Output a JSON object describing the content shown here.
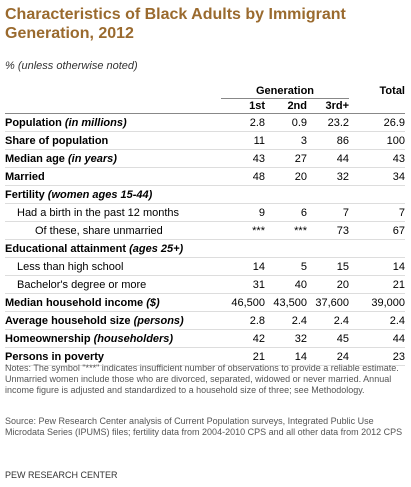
{
  "title": "Characteristics of Black Adults by Immigrant Generation, 2012",
  "subtitle": "% (unless otherwise noted)",
  "table": {
    "group_header": "Generation",
    "columns": [
      "1st",
      "2nd",
      "3rd+",
      "Total"
    ],
    "rows": [
      {
        "label": "Population",
        "qualifier": "(in millions)",
        "values": [
          "2.8",
          "0.9",
          "23.2",
          "26.9"
        ]
      },
      {
        "label": "Share of population",
        "values": [
          "11",
          "3",
          "86",
          "100"
        ]
      },
      {
        "label": "Median age",
        "qualifier": "(in years)",
        "values": [
          "43",
          "27",
          "44",
          "43"
        ]
      },
      {
        "label": "Married",
        "values": [
          "48",
          "20",
          "32",
          "34"
        ]
      },
      {
        "label": "Fertility",
        "qualifier": "(women ages 15-44)",
        "rows": [
          {
            "label": "Had a birth in the past 12 months",
            "values": [
              "9",
              "6",
              "7",
              "7"
            ],
            "rows": [
              {
                "label": "Of these, share unmarried",
                "values": [
                  "***",
                  "***",
                  "73",
                  "67"
                ]
              }
            ]
          }
        ]
      },
      {
        "label": "Educational attainment",
        "qualifier": "(ages 25+)",
        "rows": [
          {
            "label": "Less than high school",
            "values": [
              "14",
              "5",
              "15",
              "14"
            ]
          },
          {
            "label": "Bachelor's degree or more",
            "values": [
              "31",
              "40",
              "20",
              "21"
            ]
          }
        ]
      },
      {
        "label": "Median household income",
        "qualifier": "($)",
        "values": [
          "46,500",
          "43,500",
          "37,600",
          "39,000"
        ]
      },
      {
        "label": "Average household size",
        "qualifier": "(persons)",
        "values": [
          "2.8",
          "2.4",
          "2.4",
          "2.4"
        ]
      },
      {
        "label": "Homeownership",
        "qualifier": "(householders)",
        "values": [
          "42",
          "32",
          "45",
          "44"
        ]
      },
      {
        "label": "Persons in poverty",
        "values": [
          "21",
          "14",
          "24",
          "23"
        ]
      }
    ]
  },
  "notes": "Notes: The symbol \"***\" indicates insufficient number of observations to provide a reliable estimate. Unmarried women include those who are divorced, separated, widowed or never married. Annual income figure is adjusted and standardized to a household size of three; see Methodology.",
  "source": "Source: Pew Research Center analysis of Current Population surveys, Integrated Public Use Microdata Series (IPUMS) files; fertility data from 2004-2010 CPS and all other data from 2012 CPS",
  "footer": "PEW RESEARCH CENTER"
}
